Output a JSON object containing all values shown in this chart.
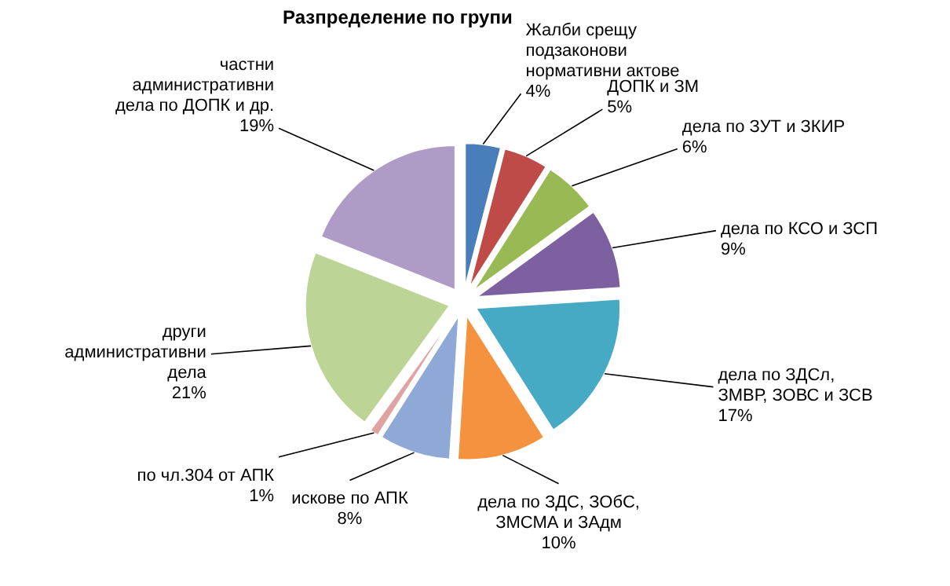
{
  "chart_data": {
    "type": "pie",
    "title": "Разпределение по групи",
    "categories": [
      "Жалби срещу подзаконови нормативни актове",
      "ДОПК и ЗМ",
      "дела по ЗУТ и ЗКИР",
      "дела по КСО и ЗСП",
      "дела по ЗДСл, ЗМВР, ЗОВС и ЗСВ",
      "дела по ЗДС, ЗОбС, ЗМСМА и ЗАдм",
      "искове по АПК",
      "по чл.304 от АПК",
      "други административни дела",
      "частни административни дела по ДОПК и др."
    ],
    "values": [
      4,
      5,
      6,
      9,
      17,
      10,
      8,
      1,
      21,
      19
    ],
    "value_labels": [
      "4%",
      "5%",
      "6%",
      "9%",
      "17%",
      "10%",
      "8%",
      "1%",
      "21%",
      "19%"
    ],
    "colors": [
      "#4a7ebb",
      "#be4b48",
      "#98b954",
      "#7d60a0",
      "#46aac5",
      "#f59240",
      "#8fa9d6",
      "#e0a3a1",
      "#bcd495",
      "#ae9cc6"
    ],
    "legend": false
  }
}
